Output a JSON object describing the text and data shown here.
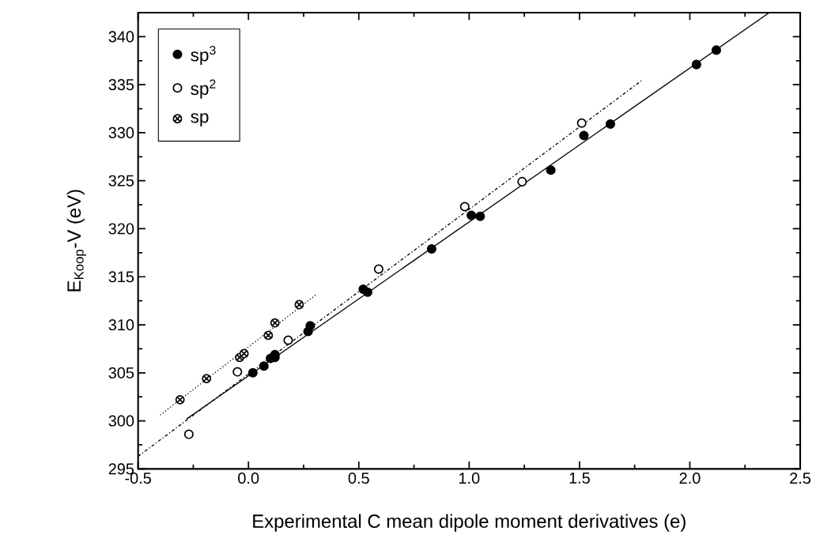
{
  "chart_data": {
    "type": "scatter",
    "xlabel": "Experimental C mean dipole moment derivatives (e)",
    "ylabel": "E$_{Koop}$-V (eV)",
    "xlim": [
      -0.5,
      2.5
    ],
    "ylim": [
      295,
      342.5
    ],
    "xticks": [
      -0.5,
      {
        "value": 0,
        "label": "0.0"
      },
      0.5,
      {
        "value": 1,
        "label": "1.0"
      },
      1.5,
      {
        "value": 2,
        "label": "2.0"
      },
      2.5
    ],
    "yticks": [
      295,
      300,
      305,
      310,
      315,
      320,
      325,
      330,
      335,
      340
    ],
    "legend": "top left",
    "grid": false,
    "series": [
      {
        "name": "sp$^{3}$",
        "marker": "circle",
        "color": "#000000",
        "x": [
          0.02,
          0.07,
          0.1,
          0.12,
          0.12,
          0.27,
          0.28,
          0.52,
          0.54,
          0.83,
          1.01,
          1.05,
          1.37,
          1.52,
          1.64,
          2.03,
          2.12
        ],
        "values": [
          305.0,
          305.7,
          306.5,
          306.9,
          306.6,
          309.3,
          309.9,
          313.7,
          313.4,
          317.9,
          321.4,
          321.3,
          326.1,
          329.7,
          330.9,
          337.1,
          338.6
        ]
      },
      {
        "name": "sp$^{2}$",
        "marker": "circle",
        "color": "#ffffff",
        "x": [
          -0.27,
          -0.05,
          0.18,
          0.59,
          0.98,
          1.24,
          1.51
        ],
        "values": [
          298.6,
          305.1,
          308.4,
          315.8,
          322.3,
          324.9,
          331.0
        ]
      },
      {
        "name": "sp",
        "marker": "cross",
        "color": "#000000",
        "x": [
          -0.31,
          -0.19,
          -0.04,
          -0.02,
          0.09,
          0.12,
          0.23
        ],
        "values": [
          302.2,
          304.4,
          306.6,
          307.0,
          308.9,
          310.2,
          312.1
        ]
      },
      {
        "type": "line",
        "line_style": "solid",
        "color": "#000000",
        "x": [
          -0.28,
          2.36
        ],
        "values": [
          300.2,
          342.5
        ]
      },
      {
        "type": "line",
        "line_style": "dashdot",
        "color": "#000000",
        "x": [
          -0.5,
          1.78
        ],
        "values": [
          296.3,
          335.4
        ]
      },
      {
        "type": "line",
        "line_style": "dotted",
        "color": "#000000",
        "x": [
          -0.4,
          0.31
        ],
        "values": [
          300.6,
          313.2
        ]
      }
    ]
  }
}
